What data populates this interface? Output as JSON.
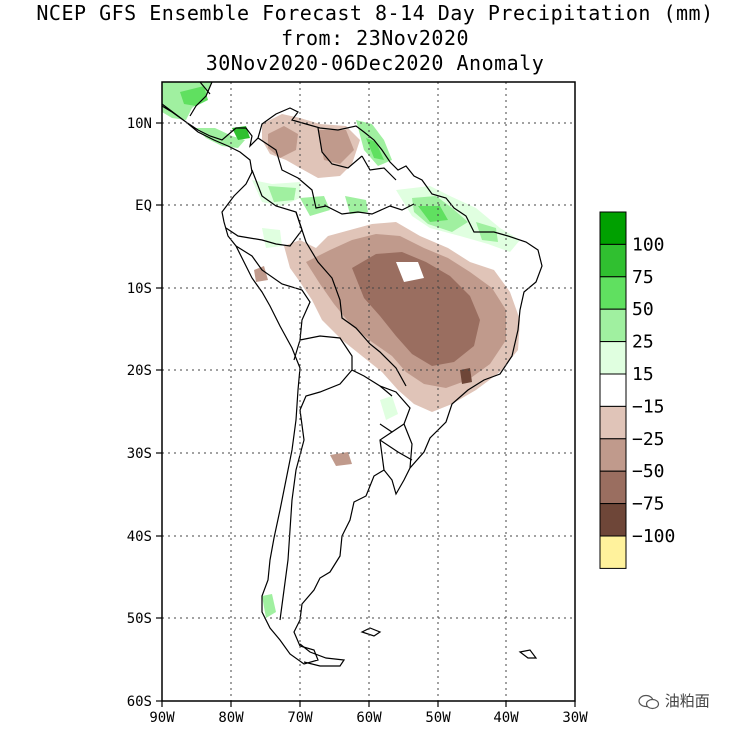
{
  "title": {
    "line1": "NCEP GFS Ensemble Forecast 8-14 Day Precipitation (mm)",
    "line2": "from: 23Nov2020",
    "line3": "30Nov2020-06Dec2020 Anomaly"
  },
  "map": {
    "lat_labels": [
      "10N",
      "EQ",
      "10S",
      "20S",
      "30S",
      "40S",
      "50S",
      "60S"
    ],
    "lon_labels": [
      "90W",
      "80W",
      "70W",
      "60W",
      "50W",
      "40W",
      "30W"
    ],
    "extent": {
      "lon_min": -90,
      "lon_max": -30,
      "lat_min": -60,
      "lat_max": 15
    },
    "grid": true
  },
  "legend": {
    "labels": [
      "100",
      "75",
      "50",
      "25",
      "15",
      "−15",
      "−25",
      "−50",
      "−75",
      "−100"
    ],
    "colors": [
      "#00a000",
      "#30c030",
      "#60e060",
      "#a0f0a0",
      "#e0ffe0",
      "#ffffff",
      "#e0c4b8",
      "#c09a8c",
      "#9a6e60",
      "#6e4638",
      "#fff29c"
    ]
  },
  "watermark": "油粕面"
}
